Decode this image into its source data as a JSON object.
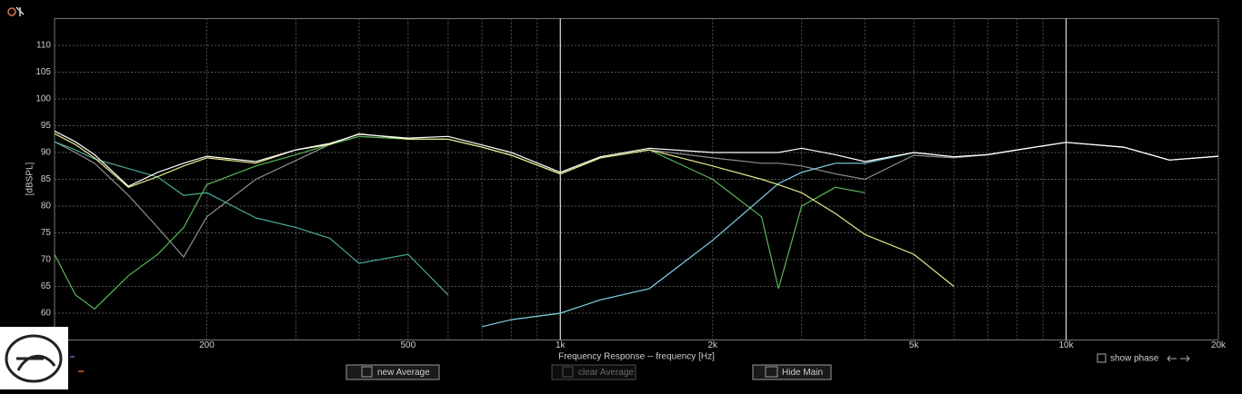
{
  "chart_data": {
    "type": "line",
    "x_label": "Frequency Response -- frequency [Hz]",
    "y_label": "[dBSPL]",
    "log_x": true,
    "grid": true,
    "xlim": [
      100,
      20000
    ],
    "ylim": [
      55,
      115
    ],
    "xticks": [
      200,
      500,
      {
        "value": 1000,
        "label": "1k"
      },
      {
        "value": 2000,
        "label": "2k"
      },
      {
        "value": 5000,
        "label": "5k"
      },
      {
        "value": 10000,
        "label": "10k"
      },
      {
        "value": 20000,
        "label": "20k"
      }
    ],
    "x_grid": [
      300,
      400,
      600,
      700,
      800,
      900,
      3000,
      4000,
      6000,
      7000,
      8000,
      9000
    ],
    "x_major_grid": [
      1000,
      10000
    ],
    "yticks": [
      60,
      65,
      70,
      75,
      80,
      85,
      90,
      95,
      100,
      105,
      110
    ],
    "x": [
      100,
      110,
      120,
      140,
      160,
      180,
      200,
      250,
      300,
      350,
      400,
      500,
      600,
      700,
      800,
      1000,
      1200,
      1500,
      2000,
      2500,
      2700,
      3000,
      3500,
      4000,
      5000,
      6000,
      7000,
      8000,
      10000,
      13000,
      16000,
      20000
    ],
    "series": [
      {
        "color": "#8e8e8e",
        "values": [
          92,
          90,
          88,
          82,
          76,
          70.5,
          78,
          85,
          88.5,
          91.5,
          93,
          92.5,
          92.5,
          91,
          89.5,
          86,
          89,
          90.5,
          89,
          88,
          88,
          87.5,
          86,
          85,
          89.5,
          89,
          89.6,
          90.5,
          91.9,
          91,
          88.6,
          89.3
        ]
      },
      {
        "color": "#4aa89a",
        "values": [
          92,
          90.5,
          88.8,
          87,
          85.4,
          82,
          82.5,
          77.8,
          76,
          74,
          69.3,
          71,
          63.4,
          null,
          null,
          null,
          null,
          null,
          null,
          null,
          null,
          null,
          null,
          null,
          null,
          null,
          null,
          null,
          null,
          null,
          null,
          null
        ]
      },
      {
        "color": "#58b858",
        "values": [
          71,
          63.4,
          60.8,
          67,
          71,
          76,
          84,
          87.5,
          89.6,
          91.5,
          93,
          92.5,
          92.5,
          91,
          89.5,
          86,
          89,
          90.5,
          85,
          78,
          64.6,
          80,
          83.5,
          82.5,
          null,
          null,
          null,
          null,
          null,
          null,
          null,
          null
        ]
      },
      {
        "color": "#7fd4e8",
        "values": [
          null,
          null,
          null,
          null,
          null,
          null,
          null,
          null,
          null,
          null,
          null,
          null,
          null,
          57.5,
          58.8,
          60,
          62.5,
          64.6,
          73.6,
          81.5,
          84.2,
          86.3,
          88,
          88,
          90,
          89.2,
          89.6,
          90.5,
          91.9,
          91,
          88.6,
          89.3
        ]
      },
      {
        "color": "#e8e88a",
        "values": [
          93.5,
          91.5,
          89,
          83.5,
          85.5,
          87.5,
          89,
          88,
          90.5,
          91.5,
          93.5,
          92.5,
          92.5,
          91,
          89.5,
          86,
          89,
          90.5,
          87.5,
          85,
          84,
          82.5,
          78.6,
          74.7,
          71,
          65,
          null,
          null,
          null,
          null,
          null,
          null
        ]
      },
      {
        "color": "#ffffff",
        "values": [
          94,
          92,
          89.6,
          83.7,
          86.3,
          88,
          89.3,
          88.3,
          90.5,
          91.7,
          93.4,
          92.7,
          93,
          91.4,
          90,
          86.3,
          89.2,
          90.8,
          90,
          90,
          90,
          90.8,
          89.6,
          88.3,
          90,
          89.2,
          89.6,
          90.5,
          91.9,
          91,
          88.6,
          89.3
        ]
      }
    ]
  },
  "controls": {
    "new_average": "new Average",
    "clear_average": "clear Average",
    "hide_main": "Hide Main",
    "show_phase": "show phase"
  }
}
